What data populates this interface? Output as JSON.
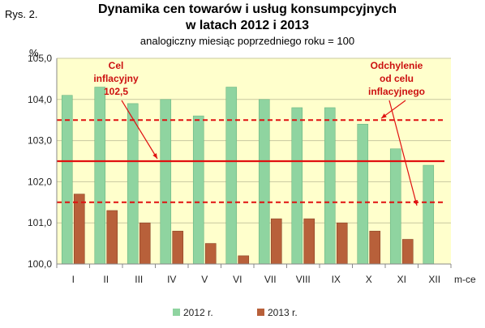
{
  "figure_label": "Rys. 2.",
  "chart_data": {
    "type": "bar",
    "title_line1": "Dynamika cen towarów i usług konsumpcyjnych",
    "title_line2": "w latach 2012 i 2013",
    "subtitle": "analogiczny miesiąc poprzedniego roku = 100",
    "ylabel": "%",
    "xlabel": "m-ce",
    "ylim": [
      100.0,
      105.0
    ],
    "yticks": [
      "100,0",
      "101,0",
      "102,0",
      "103,0",
      "104,0",
      "105,0"
    ],
    "categories": [
      "I",
      "II",
      "III",
      "IV",
      "V",
      "VI",
      "VII",
      "VIII",
      "IX",
      "X",
      "XI",
      "XII"
    ],
    "series": [
      {
        "name": "2012 r.",
        "color": "#8fd4a0",
        "values": [
          104.1,
          104.3,
          103.9,
          104.0,
          103.6,
          104.3,
          104.0,
          103.8,
          103.8,
          103.4,
          102.8,
          102.4
        ]
      },
      {
        "name": "2013 r.",
        "color": "#b8603a",
        "values": [
          101.7,
          101.3,
          101.0,
          100.8,
          100.5,
          100.2,
          101.1,
          101.1,
          101.0,
          100.8,
          100.6,
          null
        ]
      }
    ],
    "target_line": 102.5,
    "band_lines": [
      103.5,
      101.5
    ],
    "annotations": {
      "target": [
        "Cel",
        "inflacyjny",
        "102,5"
      ],
      "band": [
        "Odchylenie",
        "od celu",
        "inflacyjnego"
      ]
    },
    "grid": true,
    "legend_position": "bottom",
    "colors": {
      "plot_bg": "#ffffcc",
      "target_line": "#e01010",
      "band_line": "#e01010"
    }
  }
}
